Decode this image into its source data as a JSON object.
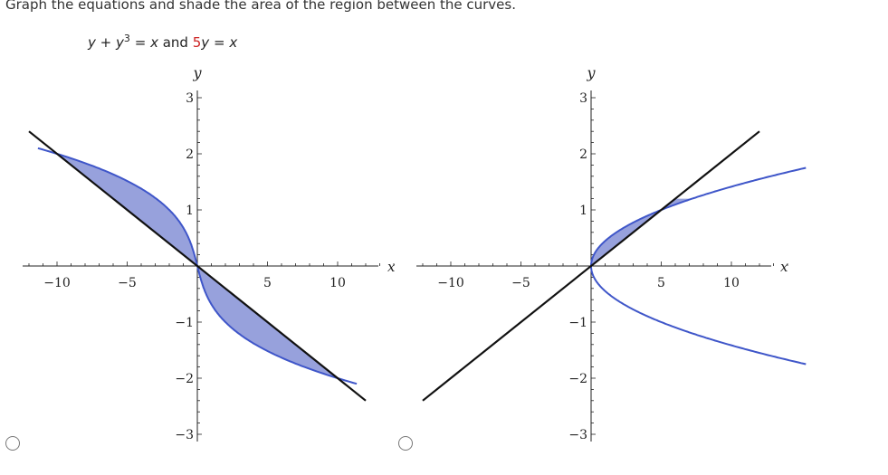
{
  "prompt": "Graph the equations and shade the area of the region between the curves.",
  "equation": {
    "lhs_y": "y",
    "plus": "+",
    "y_cubed_base": "y",
    "cube_exp": "3",
    "eq": "=",
    "x": "x",
    "and": "and",
    "coef": "5",
    "rhs_y": "y",
    "eq2": "=",
    "x2": "x"
  },
  "colors": {
    "curve": "#3f56c9",
    "fill": "#97a1dc",
    "line": "#111111",
    "axis": "#222222",
    "accent_red": "#cc2222"
  },
  "options": [
    {
      "id": "option-a",
      "selected": false,
      "chart_data": {
        "type": "line",
        "xlabel": "x",
        "ylabel": "y",
        "xlim": [
          -12.5,
          14
        ],
        "ylim": [
          -3.2,
          3.2
        ],
        "x_ticks": [
          -10,
          -5,
          5,
          10
        ],
        "x_tick_labels": [
          "−10",
          "−5",
          "5",
          "10"
        ],
        "y_ticks": [
          -3,
          -2,
          -1,
          1,
          2,
          3
        ],
        "y_tick_labels": [
          "−3",
          "−2",
          "−1",
          "1",
          "2",
          "3"
        ],
        "curve": "x = -(y + y^3)",
        "line": "5y = -x",
        "curve_y_range": [
          -2.1,
          2.1
        ],
        "line_x_range": [
          -12,
          12
        ],
        "shaded_between_y": [
          -2,
          2
        ]
      }
    },
    {
      "id": "option-b",
      "selected": false,
      "chart_data": {
        "type": "line",
        "xlabel": "x",
        "ylabel": "y",
        "xlim": [
          -12.5,
          14
        ],
        "ylim": [
          -3.2,
          3.2
        ],
        "x_ticks": [
          -10,
          -5,
          5,
          10
        ],
        "x_tick_labels": [
          "−10",
          "−5",
          "5",
          "10"
        ],
        "y_ticks": [
          -3,
          -2,
          -1,
          1,
          2,
          3
        ],
        "y_tick_labels": [
          "−3",
          "−2",
          "−1",
          "1",
          "2",
          "3"
        ],
        "curve": "x = 5y^2 (two branches)",
        "line": "5y = x",
        "curve_y_range": [
          -1.75,
          1.75
        ],
        "line_x_range": [
          -12,
          12
        ],
        "shaded_between_y": [
          0,
          1.2
        ]
      }
    }
  ]
}
